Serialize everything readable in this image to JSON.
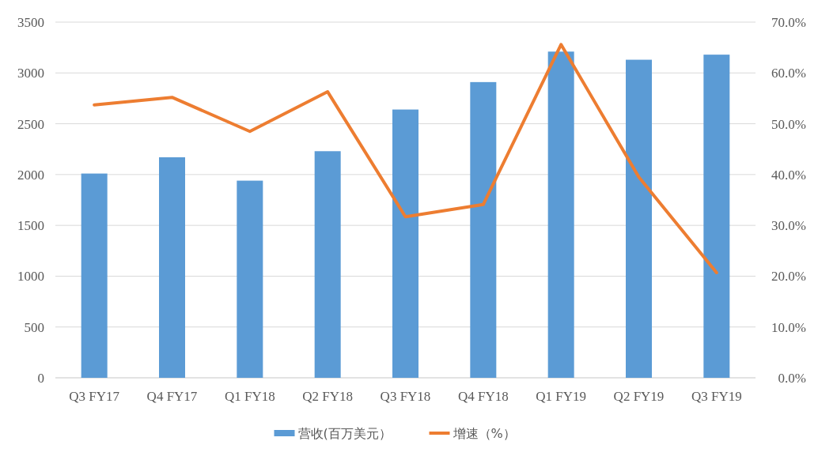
{
  "chart_data": {
    "type": "bar",
    "categories": [
      "Q3 FY17",
      "Q4 FY17",
      "Q1 FY18",
      "Q2 FY18",
      "Q3 FY18",
      "Q4 FY18",
      "Q1 FY19",
      "Q2 FY19",
      "Q3 FY19"
    ],
    "series": [
      {
        "name": "营收(百万美元）",
        "color": "#5b9bd5",
        "values": [
          2010,
          2170,
          1940,
          2230,
          2640,
          2910,
          3210,
          3130,
          3180
        ]
      },
      {
        "name": "增速（%）",
        "type": "line",
        "axis": "y2",
        "color": "#ed7d31",
        "values": [
          53.7,
          55.2,
          48.5,
          56.3,
          31.7,
          34.1,
          65.6,
          39.5,
          20.7
        ]
      }
    ],
    "ylim": [
      0,
      3500
    ],
    "yticks": [
      0,
      500,
      1000,
      1500,
      2000,
      2500,
      3000,
      3500
    ],
    "y2lim": [
      0,
      70
    ],
    "y2ticks": [
      {
        "value": 0,
        "label": "0.0%"
      },
      {
        "value": 10,
        "label": "10.0%"
      },
      {
        "value": 20,
        "label": "20.0%"
      },
      {
        "value": 30,
        "label": "30.0%"
      },
      {
        "value": 40,
        "label": "40.0%"
      },
      {
        "value": 50,
        "label": "50.0%"
      },
      {
        "value": 60,
        "label": "60.0%"
      },
      {
        "value": 70,
        "label": "70.0%"
      }
    ],
    "grid": "y",
    "legend": "bottom"
  }
}
